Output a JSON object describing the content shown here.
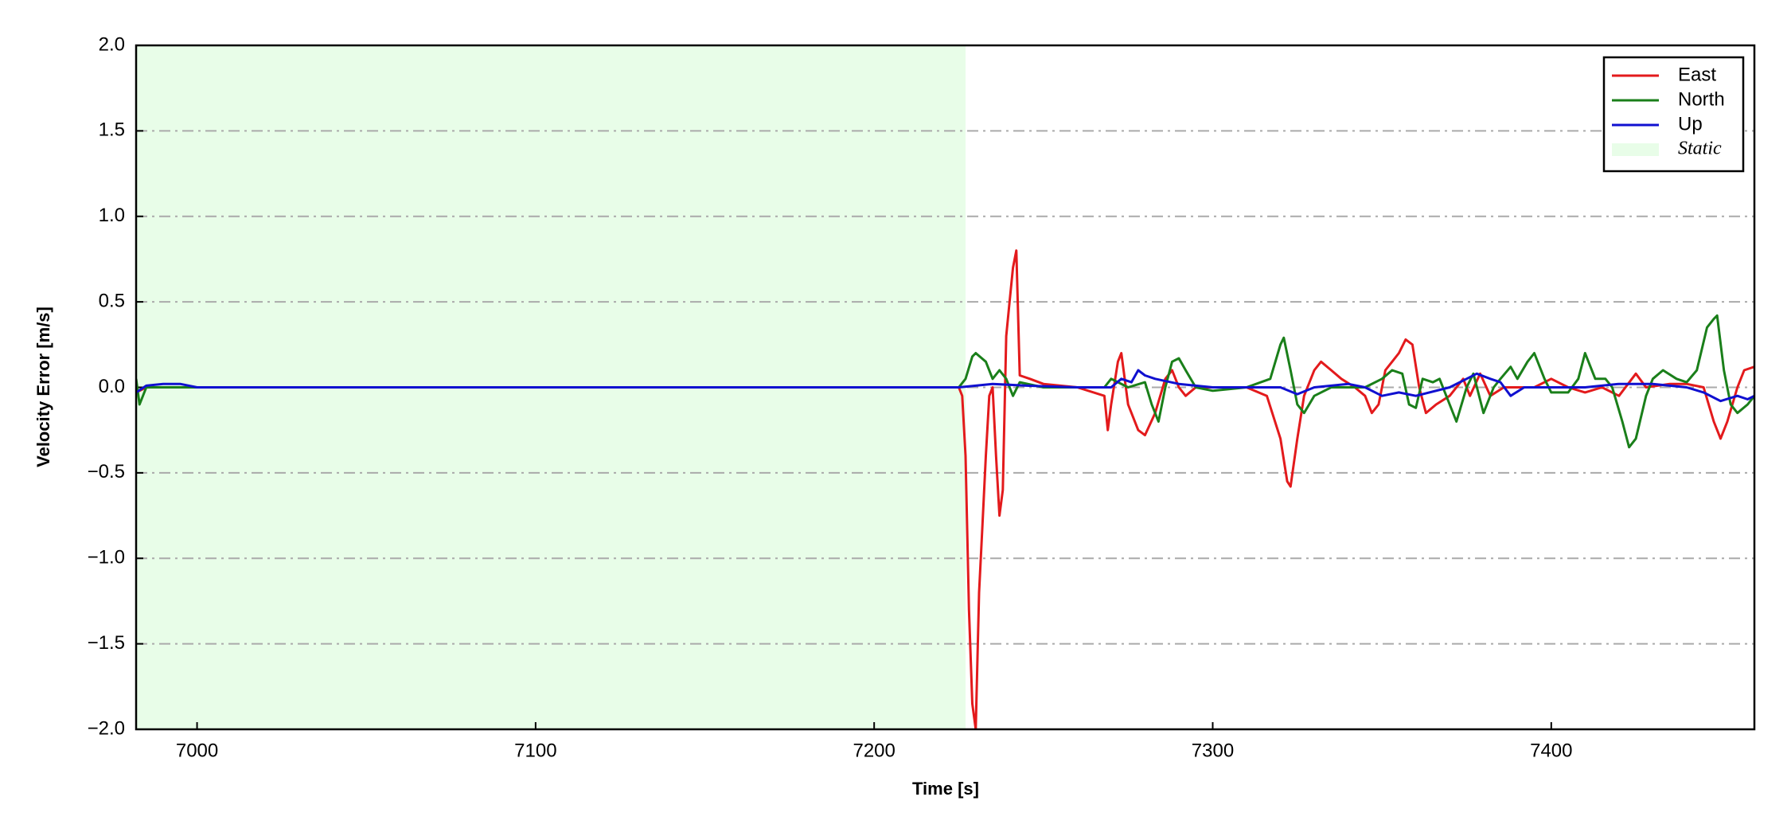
{
  "chart_data": {
    "type": "line",
    "xlabel": "Time [s]",
    "ylabel": "Velocity Error [m/s]",
    "xlim": [
      6982,
      7460
    ],
    "ylim": [
      -2,
      2
    ],
    "xticks": [
      7000,
      7100,
      7200,
      7300,
      7400
    ],
    "yticks": [
      {
        "value": -2,
        "label": "−2.0"
      },
      {
        "value": -1.5,
        "label": "−1.5"
      },
      {
        "value": -1,
        "label": "−1.0"
      },
      {
        "value": -0.5,
        "label": "−0.5"
      },
      {
        "value": 0,
        "label": "0.0"
      },
      {
        "value": 0.5,
        "label": "0.5"
      },
      {
        "value": 1,
        "label": "1.0"
      },
      {
        "value": 1.5,
        "label": "1.5"
      },
      {
        "value": 2,
        "label": "2.0"
      }
    ],
    "grid": true,
    "legend": "upper right",
    "shaded_region": {
      "name": "Static",
      "color": "#e8fde8",
      "span": [
        6982,
        7227
      ]
    },
    "series": [
      {
        "name": "East",
        "color": "#e31a1c",
        "x": [
          6982,
          6985,
          7000,
          7050,
          7100,
          7150,
          7200,
          7225,
          7226,
          7227,
          7228,
          7229,
          7230,
          7231,
          7232,
          7233,
          7234,
          7235,
          7236,
          7237,
          7238,
          7239,
          7240,
          7241,
          7242,
          7243,
          7246,
          7250,
          7260,
          7268,
          7269,
          7270,
          7272,
          7273,
          7275,
          7278,
          7280,
          7283,
          7286,
          7288,
          7290,
          7292,
          7295,
          7300,
          7310,
          7316,
          7320,
          7322,
          7323,
          7325,
          7327,
          7330,
          7332,
          7335,
          7338,
          7342,
          7345,
          7347,
          7349,
          7351,
          7353,
          7355,
          7357,
          7359,
          7361,
          7363,
          7366,
          7370,
          7374,
          7376,
          7379,
          7382,
          7386,
          7390,
          7395,
          7400,
          7405,
          7410,
          7415,
          7420,
          7425,
          7428,
          7435,
          7440,
          7445,
          7448,
          7450,
          7452,
          7455,
          7457,
          7460
        ],
        "values": [
          -0.03,
          0,
          0,
          0,
          0,
          0,
          0,
          0,
          -0.05,
          -0.4,
          -1.3,
          -1.85,
          -2,
          -1.2,
          -0.8,
          -0.4,
          -0.05,
          0,
          -0.4,
          -0.75,
          -0.6,
          0.3,
          0.5,
          0.7,
          0.8,
          0.07,
          0.05,
          0.02,
          0,
          -0.05,
          -0.25,
          -0.1,
          0.15,
          0.2,
          -0.1,
          -0.25,
          -0.28,
          -0.15,
          0.05,
          0.1,
          0,
          -0.05,
          0,
          0,
          0,
          -0.05,
          -0.3,
          -0.55,
          -0.58,
          -0.3,
          -0.05,
          0.1,
          0.15,
          0.1,
          0.05,
          0,
          -0.05,
          -0.15,
          -0.1,
          0.1,
          0.15,
          0.2,
          0.28,
          0.25,
          0,
          -0.15,
          -0.1,
          -0.05,
          0.05,
          -0.05,
          0.08,
          -0.05,
          0,
          0,
          0,
          0.05,
          0,
          -0.03,
          0,
          -0.05,
          0.08,
          0,
          0.02,
          0.02,
          0,
          -0.2,
          -0.3,
          -0.2,
          0,
          0.1,
          0.12
        ]
      },
      {
        "name": "North",
        "color": "#1a7f1a",
        "x": [
          6982,
          6983,
          6985,
          7000,
          7100,
          7200,
          7225,
          7227,
          7229,
          7230,
          7233,
          7235,
          7237,
          7239,
          7241,
          7243,
          7250,
          7268,
          7270,
          7275,
          7280,
          7282,
          7284,
          7286,
          7288,
          7290,
          7292,
          7295,
          7300,
          7310,
          7317,
          7320,
          7321,
          7323,
          7325,
          7327,
          7330,
          7335,
          7345,
          7350,
          7353,
          7356,
          7358,
          7360,
          7362,
          7365,
          7367,
          7370,
          7372,
          7375,
          7377,
          7380,
          7383,
          7385,
          7388,
          7390,
          7393,
          7395,
          7398,
          7400,
          7405,
          7408,
          7410,
          7413,
          7416,
          7418,
          7421,
          7423,
          7425,
          7428,
          7430,
          7433,
          7437,
          7440,
          7443,
          7446,
          7448,
          7449,
          7451,
          7453,
          7455,
          7458,
          7460
        ],
        "values": [
          0.05,
          -0.1,
          0,
          0,
          0,
          0,
          0,
          0.05,
          0.18,
          0.2,
          0.15,
          0.05,
          0.1,
          0.05,
          -0.05,
          0.03,
          0,
          0,
          0.05,
          0,
          0.03,
          -0.1,
          -0.2,
          0,
          0.15,
          0.17,
          0.1,
          0,
          -0.02,
          0,
          0.05,
          0.25,
          0.29,
          0.1,
          -0.1,
          -0.15,
          -0.05,
          0,
          0,
          0.05,
          0.1,
          0.08,
          -0.1,
          -0.12,
          0.05,
          0.03,
          0.05,
          -0.1,
          -0.2,
          0,
          0.08,
          -0.15,
          0,
          0.05,
          0.12,
          0.05,
          0.15,
          0.2,
          0.05,
          -0.03,
          -0.03,
          0.05,
          0.2,
          0.05,
          0.05,
          0,
          -0.2,
          -0.35,
          -0.3,
          -0.05,
          0.05,
          0.1,
          0.05,
          0.03,
          0.1,
          0.35,
          0.4,
          0.42,
          0.1,
          -0.1,
          -0.15,
          -0.1,
          -0.05
        ]
      },
      {
        "name": "Up",
        "color": "#1010d0",
        "x": [
          6982,
          6985,
          6990,
          6995,
          7000,
          7050,
          7100,
          7200,
          7225,
          7235,
          7245,
          7260,
          7270,
          7273,
          7276,
          7278,
          7280,
          7283,
          7290,
          7300,
          7310,
          7320,
          7325,
          7330,
          7340,
          7345,
          7350,
          7355,
          7360,
          7370,
          7375,
          7378,
          7382,
          7385,
          7388,
          7392,
          7400,
          7410,
          7420,
          7430,
          7440,
          7445,
          7450,
          7455,
          7458,
          7460
        ],
        "values": [
          -0.03,
          0.01,
          0.02,
          0.02,
          0,
          0,
          0,
          0,
          0,
          0.02,
          0.01,
          0,
          0,
          0.05,
          0.03,
          0.1,
          0.07,
          0.05,
          0.02,
          0,
          0,
          0,
          -0.04,
          0,
          0.02,
          0,
          -0.05,
          -0.03,
          -0.05,
          0,
          0.05,
          0.08,
          0.05,
          0.03,
          -0.05,
          0,
          0,
          0,
          0.02,
          0.02,
          0,
          -0.03,
          -0.08,
          -0.05,
          -0.07,
          -0.05
        ]
      }
    ]
  }
}
